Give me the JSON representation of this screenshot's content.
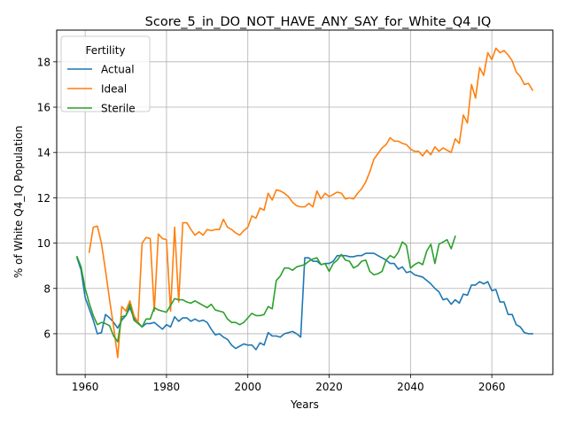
{
  "chart_data": {
    "type": "line",
    "title": "Score_5_in_DO_NOT_HAVE_ANY_SAY_for_White_Q4_IQ",
    "xlabel": "Years",
    "ylabel": "% of White Q4_IQ Population",
    "xlim": [
      1953,
      2075
    ],
    "ylim": [
      4.2,
      19.4
    ],
    "xticks": [
      1960,
      1980,
      2000,
      2020,
      2040,
      2060
    ],
    "yticks": [
      6,
      8,
      10,
      12,
      14,
      16,
      18
    ],
    "grid": true,
    "legend": {
      "title": "Fertility",
      "placement": "upper-left"
    },
    "series": [
      {
        "name": "Actual",
        "color": "#1f77b4",
        "points": [
          [
            1958,
            9.35
          ],
          [
            1959,
            8.8
          ],
          [
            1960,
            7.6
          ],
          [
            1961,
            7.1
          ],
          [
            1962,
            6.6
          ],
          [
            1963,
            6.0
          ],
          [
            1964,
            6.05
          ],
          [
            1965,
            6.85
          ],
          [
            1966,
            6.7
          ],
          [
            1967,
            6.5
          ],
          [
            1968,
            6.25
          ],
          [
            1969,
            6.6
          ],
          [
            1970,
            6.8
          ],
          [
            1971,
            7.15
          ],
          [
            1972,
            6.7
          ],
          [
            1973,
            6.5
          ],
          [
            1974,
            6.3
          ],
          [
            1975,
            6.45
          ],
          [
            1976,
            6.45
          ],
          [
            1977,
            6.5
          ],
          [
            1978,
            6.35
          ],
          [
            1979,
            6.2
          ],
          [
            1980,
            6.4
          ],
          [
            1981,
            6.3
          ],
          [
            1982,
            6.75
          ],
          [
            1983,
            6.55
          ],
          [
            1984,
            6.7
          ],
          [
            1985,
            6.7
          ],
          [
            1986,
            6.55
          ],
          [
            1987,
            6.65
          ],
          [
            1988,
            6.55
          ],
          [
            1989,
            6.6
          ],
          [
            1990,
            6.5
          ],
          [
            1991,
            6.2
          ],
          [
            1992,
            5.95
          ],
          [
            1993,
            6.0
          ],
          [
            1994,
            5.85
          ],
          [
            1995,
            5.75
          ],
          [
            1996,
            5.5
          ],
          [
            1997,
            5.35
          ],
          [
            1998,
            5.45
          ],
          [
            1999,
            5.55
          ],
          [
            2000,
            5.5
          ],
          [
            2001,
            5.5
          ],
          [
            2002,
            5.3
          ],
          [
            2003,
            5.6
          ],
          [
            2004,
            5.5
          ],
          [
            2005,
            6.05
          ],
          [
            2006,
            5.9
          ],
          [
            2007,
            5.9
          ],
          [
            2008,
            5.85
          ],
          [
            2009,
            6.0
          ],
          [
            2010,
            6.05
          ],
          [
            2011,
            6.1
          ],
          [
            2012,
            6.0
          ],
          [
            2013,
            5.85
          ],
          [
            2014,
            9.35
          ],
          [
            2015,
            9.35
          ],
          [
            2016,
            9.2
          ],
          [
            2017,
            9.2
          ],
          [
            2018,
            9.05
          ],
          [
            2019,
            9.1
          ],
          [
            2020,
            9.1
          ],
          [
            2021,
            9.2
          ],
          [
            2022,
            9.45
          ],
          [
            2023,
            9.45
          ],
          [
            2024,
            9.45
          ],
          [
            2025,
            9.4
          ],
          [
            2026,
            9.4
          ],
          [
            2027,
            9.45
          ],
          [
            2028,
            9.45
          ],
          [
            2029,
            9.55
          ],
          [
            2030,
            9.55
          ],
          [
            2031,
            9.55
          ],
          [
            2032,
            9.45
          ],
          [
            2033,
            9.35
          ],
          [
            2034,
            9.25
          ],
          [
            2035,
            9.1
          ],
          [
            2036,
            9.1
          ],
          [
            2037,
            8.85
          ],
          [
            2038,
            8.95
          ],
          [
            2039,
            8.7
          ],
          [
            2040,
            8.75
          ],
          [
            2041,
            8.6
          ],
          [
            2042,
            8.55
          ],
          [
            2043,
            8.5
          ],
          [
            2044,
            8.35
          ],
          [
            2045,
            8.2
          ],
          [
            2046,
            8.0
          ],
          [
            2047,
            7.85
          ],
          [
            2048,
            7.5
          ],
          [
            2049,
            7.55
          ],
          [
            2050,
            7.3
          ],
          [
            2051,
            7.5
          ],
          [
            2052,
            7.35
          ],
          [
            2053,
            7.75
          ],
          [
            2054,
            7.7
          ],
          [
            2055,
            8.15
          ],
          [
            2056,
            8.15
          ],
          [
            2057,
            8.3
          ],
          [
            2058,
            8.2
          ],
          [
            2059,
            8.3
          ],
          [
            2060,
            7.9
          ],
          [
            2061,
            7.95
          ],
          [
            2062,
            7.4
          ],
          [
            2063,
            7.4
          ],
          [
            2064,
            6.85
          ],
          [
            2065,
            6.85
          ],
          [
            2066,
            6.4
          ],
          [
            2067,
            6.3
          ],
          [
            2068,
            6.05
          ],
          [
            2069,
            6.0
          ],
          [
            2070,
            6.0
          ]
        ]
      },
      {
        "name": "Ideal",
        "color": "#ff7f0e",
        "points": [
          [
            1961,
            9.6
          ],
          [
            1962,
            10.7
          ],
          [
            1963,
            10.75
          ],
          [
            1964,
            10.0
          ],
          [
            1965,
            8.8
          ],
          [
            1966,
            7.5
          ],
          [
            1967,
            6.3
          ],
          [
            1968,
            4.95
          ],
          [
            1969,
            7.2
          ],
          [
            1970,
            7.0
          ],
          [
            1971,
            7.45
          ],
          [
            1972,
            6.8
          ],
          [
            1973,
            6.5
          ],
          [
            1974,
            10.0
          ],
          [
            1975,
            10.25
          ],
          [
            1976,
            10.2
          ],
          [
            1977,
            7.0
          ],
          [
            1978,
            10.4
          ],
          [
            1979,
            10.2
          ],
          [
            1980,
            10.15
          ],
          [
            1981,
            7.0
          ],
          [
            1982,
            10.7
          ],
          [
            1983,
            7.4
          ],
          [
            1984,
            10.9
          ],
          [
            1985,
            10.9
          ],
          [
            1986,
            10.6
          ],
          [
            1987,
            10.35
          ],
          [
            1988,
            10.5
          ],
          [
            1989,
            10.35
          ],
          [
            1990,
            10.6
          ],
          [
            1991,
            10.55
          ],
          [
            1992,
            10.6
          ],
          [
            1993,
            10.6
          ],
          [
            1994,
            11.05
          ],
          [
            1995,
            10.7
          ],
          [
            1996,
            10.6
          ],
          [
            1997,
            10.45
          ],
          [
            1998,
            10.35
          ],
          [
            1999,
            10.55
          ],
          [
            2000,
            10.7
          ],
          [
            2001,
            11.2
          ],
          [
            2002,
            11.1
          ],
          [
            2003,
            11.55
          ],
          [
            2004,
            11.45
          ],
          [
            2005,
            12.2
          ],
          [
            2006,
            11.9
          ],
          [
            2007,
            12.35
          ],
          [
            2008,
            12.3
          ],
          [
            2009,
            12.2
          ],
          [
            2010,
            12.05
          ],
          [
            2011,
            11.8
          ],
          [
            2012,
            11.65
          ],
          [
            2013,
            11.6
          ],
          [
            2014,
            11.6
          ],
          [
            2015,
            11.75
          ],
          [
            2016,
            11.6
          ],
          [
            2017,
            12.3
          ],
          [
            2018,
            11.95
          ],
          [
            2019,
            12.2
          ],
          [
            2020,
            12.05
          ],
          [
            2021,
            12.15
          ],
          [
            2022,
            12.25
          ],
          [
            2023,
            12.2
          ],
          [
            2024,
            11.95
          ],
          [
            2025,
            12.0
          ],
          [
            2026,
            11.95
          ],
          [
            2027,
            12.2
          ],
          [
            2028,
            12.4
          ],
          [
            2029,
            12.7
          ],
          [
            2030,
            13.15
          ],
          [
            2031,
            13.7
          ],
          [
            2032,
            13.95
          ],
          [
            2033,
            14.2
          ],
          [
            2034,
            14.35
          ],
          [
            2035,
            14.65
          ],
          [
            2036,
            14.5
          ],
          [
            2037,
            14.5
          ],
          [
            2038,
            14.4
          ],
          [
            2039,
            14.35
          ],
          [
            2040,
            14.15
          ],
          [
            2041,
            14.05
          ],
          [
            2042,
            14.05
          ],
          [
            2043,
            13.85
          ],
          [
            2044,
            14.1
          ],
          [
            2045,
            13.9
          ],
          [
            2046,
            14.25
          ],
          [
            2047,
            14.05
          ],
          [
            2048,
            14.2
          ],
          [
            2049,
            14.1
          ],
          [
            2050,
            14.0
          ],
          [
            2051,
            14.6
          ],
          [
            2052,
            14.4
          ],
          [
            2053,
            15.65
          ],
          [
            2054,
            15.3
          ],
          [
            2055,
            17.0
          ],
          [
            2056,
            16.4
          ],
          [
            2057,
            17.75
          ],
          [
            2058,
            17.4
          ],
          [
            2059,
            18.4
          ],
          [
            2060,
            18.1
          ],
          [
            2061,
            18.6
          ],
          [
            2062,
            18.4
          ],
          [
            2063,
            18.5
          ],
          [
            2064,
            18.3
          ],
          [
            2065,
            18.05
          ],
          [
            2066,
            17.55
          ],
          [
            2067,
            17.35
          ],
          [
            2068,
            17.0
          ],
          [
            2069,
            17.05
          ],
          [
            2070,
            16.75
          ]
        ]
      },
      {
        "name": "Sterile",
        "color": "#2ca02c",
        "points": [
          [
            1958,
            9.4
          ],
          [
            1959,
            8.95
          ],
          [
            1960,
            8.0
          ],
          [
            1961,
            7.35
          ],
          [
            1962,
            6.8
          ],
          [
            1963,
            6.4
          ],
          [
            1964,
            6.5
          ],
          [
            1965,
            6.45
          ],
          [
            1966,
            6.35
          ],
          [
            1967,
            5.9
          ],
          [
            1968,
            5.65
          ],
          [
            1969,
            6.75
          ],
          [
            1970,
            6.8
          ],
          [
            1971,
            7.3
          ],
          [
            1972,
            6.6
          ],
          [
            1973,
            6.45
          ],
          [
            1974,
            6.3
          ],
          [
            1975,
            6.65
          ],
          [
            1976,
            6.65
          ],
          [
            1977,
            7.15
          ],
          [
            1978,
            7.05
          ],
          [
            1979,
            7.0
          ],
          [
            1980,
            6.95
          ],
          [
            1981,
            7.25
          ],
          [
            1982,
            7.55
          ],
          [
            1983,
            7.5
          ],
          [
            1984,
            7.5
          ],
          [
            1985,
            7.4
          ],
          [
            1986,
            7.35
          ],
          [
            1987,
            7.45
          ],
          [
            1988,
            7.35
          ],
          [
            1989,
            7.25
          ],
          [
            1990,
            7.15
          ],
          [
            1991,
            7.3
          ],
          [
            1992,
            7.05
          ],
          [
            1993,
            7.0
          ],
          [
            1994,
            6.95
          ],
          [
            1995,
            6.65
          ],
          [
            1996,
            6.5
          ],
          [
            1997,
            6.5
          ],
          [
            1998,
            6.4
          ],
          [
            1999,
            6.5
          ],
          [
            2000,
            6.7
          ],
          [
            2001,
            6.9
          ],
          [
            2002,
            6.8
          ],
          [
            2003,
            6.8
          ],
          [
            2004,
            6.85
          ],
          [
            2005,
            7.2
          ],
          [
            2006,
            7.1
          ],
          [
            2007,
            8.35
          ],
          [
            2008,
            8.55
          ],
          [
            2009,
            8.9
          ],
          [
            2010,
            8.9
          ],
          [
            2011,
            8.8
          ],
          [
            2012,
            8.95
          ],
          [
            2013,
            9.0
          ],
          [
            2014,
            9.05
          ],
          [
            2015,
            9.2
          ],
          [
            2016,
            9.3
          ],
          [
            2017,
            9.35
          ],
          [
            2018,
            9.05
          ],
          [
            2019,
            9.1
          ],
          [
            2020,
            8.75
          ],
          [
            2021,
            9.1
          ],
          [
            2022,
            9.25
          ],
          [
            2023,
            9.5
          ],
          [
            2024,
            9.25
          ],
          [
            2025,
            9.2
          ],
          [
            2026,
            8.9
          ],
          [
            2027,
            9.0
          ],
          [
            2028,
            9.2
          ],
          [
            2029,
            9.25
          ],
          [
            2030,
            8.75
          ],
          [
            2031,
            8.6
          ],
          [
            2032,
            8.65
          ],
          [
            2033,
            8.75
          ],
          [
            2034,
            9.25
          ],
          [
            2035,
            9.45
          ],
          [
            2036,
            9.35
          ],
          [
            2037,
            9.6
          ],
          [
            2038,
            10.05
          ],
          [
            2039,
            9.9
          ],
          [
            2040,
            8.9
          ],
          [
            2041,
            9.05
          ],
          [
            2042,
            9.15
          ],
          [
            2043,
            9.05
          ],
          [
            2044,
            9.65
          ],
          [
            2045,
            9.95
          ],
          [
            2046,
            9.1
          ],
          [
            2047,
            9.95
          ],
          [
            2048,
            10.05
          ],
          [
            2049,
            10.15
          ],
          [
            2050,
            9.75
          ],
          [
            2051,
            10.3
          ]
        ]
      }
    ]
  }
}
